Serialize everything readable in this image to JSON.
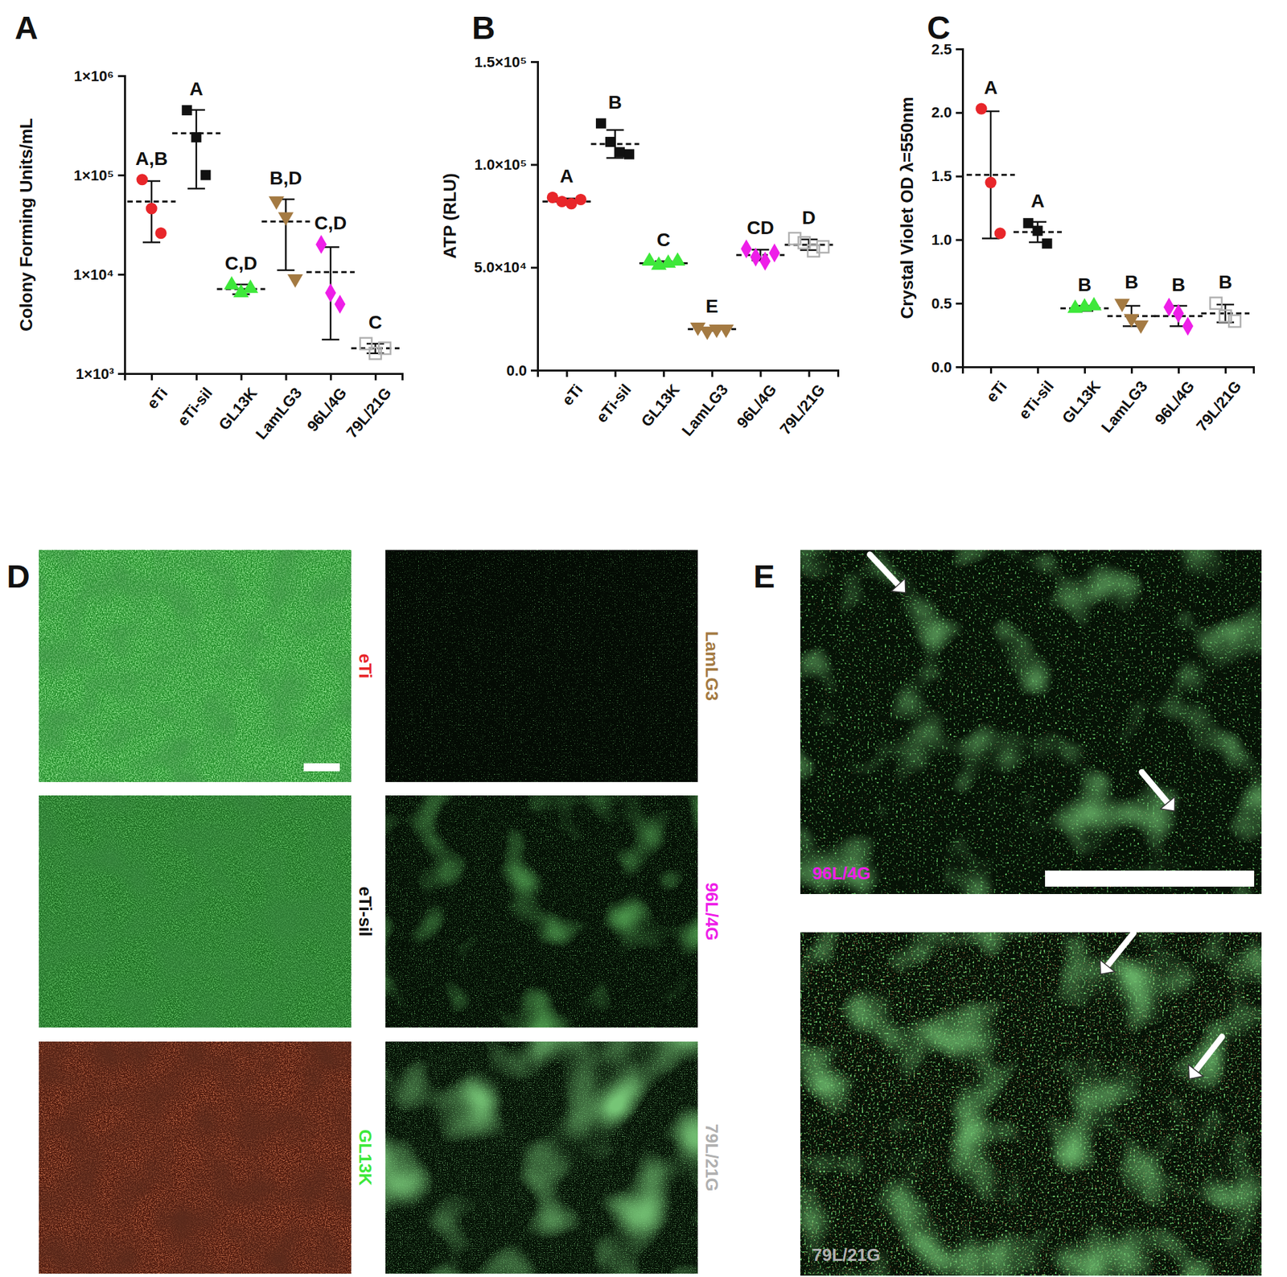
{
  "chart_data": [
    {
      "type": "scatter",
      "panel_label": "A",
      "y_label": "Colony Forming Units/mL",
      "log": "y",
      "ylim": [
        1000,
        1000000
      ],
      "yticks": [
        {
          "value": 1000,
          "label": "1×10³"
        },
        {
          "value": 10000,
          "label": "1×10⁴"
        },
        {
          "value": 100000,
          "label": "1×10⁵"
        },
        {
          "value": 1000000,
          "label": "1×10⁶"
        }
      ],
      "series": [
        {
          "name": "eTi",
          "color": "#e8262a",
          "marker": "circle",
          "values": [
            90000,
            46000,
            26000
          ],
          "mean": 54000,
          "sd": 33000,
          "letter": "A,B"
        },
        {
          "name": "eTi-sil",
          "color": "#111111",
          "marker": "square",
          "values": [
            450000,
            240000,
            100000
          ],
          "mean": 263000,
          "sd": 190000,
          "letter": "A"
        },
        {
          "name": "GL13K",
          "color": "#3ee83a",
          "marker": "triangle-up",
          "values": [
            7800,
            6500,
            7200
          ],
          "mean": 7100,
          "sd": 800,
          "letter": "C,D"
        },
        {
          "name": "LamLG3",
          "color": "#a47a42",
          "marker": "triangle-down",
          "values": [
            55000,
            38000,
            9000
          ],
          "mean": 34000,
          "sd": 23000,
          "letter": "B,D"
        },
        {
          "name": "96L/4G",
          "color": "#ee1ee8",
          "marker": "diamond",
          "values": [
            20000,
            6500,
            5000
          ],
          "mean": 10500,
          "sd": 8300,
          "letter": "C,D"
        },
        {
          "name": "79L/21G",
          "color": "#b0b0b0",
          "marker": "square-open",
          "values": [
            2000,
            1600,
            1800
          ],
          "mean": 1800,
          "sd": 200,
          "letter": "C"
        }
      ]
    },
    {
      "type": "scatter",
      "panel_label": "B",
      "y_label": "ATP (RLU)",
      "ylim": [
        0,
        150000
      ],
      "yticks": [
        {
          "value": 0,
          "label": "0.0"
        },
        {
          "value": 50000,
          "label": "5.0×10⁴"
        },
        {
          "value": 100000,
          "label": "1.0×10⁵"
        },
        {
          "value": 150000,
          "label": "1.5×10⁵"
        }
      ],
      "series": [
        {
          "name": "eTi",
          "color": "#e8262a",
          "marker": "circle",
          "values": [
            84000,
            82000,
            81000,
            83000
          ],
          "mean": 82000,
          "sd": 1500,
          "letter": "A"
        },
        {
          "name": "eTi-sil",
          "color": "#111111",
          "marker": "square",
          "values": [
            120000,
            111000,
            106000,
            105000
          ],
          "mean": 110000,
          "sd": 6800,
          "letter": "B"
        },
        {
          "name": "GL13K",
          "color": "#3ee83a",
          "marker": "triangle-up",
          "values": [
            53000,
            51000,
            52000,
            53000
          ],
          "mean": 52000,
          "sd": 1000,
          "letter": "C"
        },
        {
          "name": "LamLG3",
          "color": "#a47a42",
          "marker": "triangle-down",
          "values": [
            21000,
            19000,
            20000,
            20000
          ],
          "mean": 20000,
          "sd": 800,
          "letter": "E"
        },
        {
          "name": "96L/4G",
          "color": "#ee1ee8",
          "marker": "diamond",
          "values": [
            59000,
            55000,
            53000,
            57000
          ],
          "mean": 56000,
          "sd": 2600,
          "letter": "CD"
        },
        {
          "name": "79L/21G",
          "color": "#b0b0b0",
          "marker": "square-open",
          "values": [
            64000,
            62000,
            58000,
            60000
          ],
          "mean": 61000,
          "sd": 2600,
          "letter": "D"
        }
      ]
    },
    {
      "type": "scatter",
      "panel_label": "C",
      "y_label": "Crystal Violet OD λ=550nm",
      "ylim": [
        0,
        2.5
      ],
      "yticks": [
        {
          "value": 0,
          "label": "0.0"
        },
        {
          "value": 0.5,
          "label": "0.5"
        },
        {
          "value": 1,
          "label": "1.0"
        },
        {
          "value": 1.5,
          "label": "1.5"
        },
        {
          "value": 2,
          "label": "2.0"
        },
        {
          "value": 2.5,
          "label": "2.5"
        }
      ],
      "series": [
        {
          "name": "eTi",
          "color": "#e8262a",
          "marker": "circle",
          "values": [
            2.03,
            1.45,
            1.05
          ],
          "mean": 1.51,
          "sd": 0.5,
          "letter": "A"
        },
        {
          "name": "eTi-sil",
          "color": "#111111",
          "marker": "square",
          "values": [
            1.13,
            1.07,
            0.97
          ],
          "mean": 1.06,
          "sd": 0.08,
          "letter": "A"
        },
        {
          "name": "GL13K",
          "color": "#3ee83a",
          "marker": "triangle-up",
          "values": [
            0.46,
            0.47,
            0.48
          ],
          "mean": 0.46,
          "sd": 0.02,
          "letter": "B"
        },
        {
          "name": "LamLG3",
          "color": "#a47a42",
          "marker": "triangle-down",
          "values": [
            0.5,
            0.38,
            0.33
          ],
          "mean": 0.4,
          "sd": 0.08,
          "letter": "B"
        },
        {
          "name": "96L/4G",
          "color": "#ee1ee8",
          "marker": "diamond",
          "values": [
            0.47,
            0.42,
            0.32
          ],
          "mean": 0.4,
          "sd": 0.08,
          "letter": "B"
        },
        {
          "name": "79L/21G",
          "color": "#b0b0b0",
          "marker": "square-open",
          "values": [
            0.5,
            0.4,
            0.36
          ],
          "mean": 0.42,
          "sd": 0.07,
          "letter": "B"
        }
      ]
    }
  ],
  "images": [
    {
      "panel_label": "D",
      "panels": [
        {
          "label": "eTi",
          "color": "#e8262a"
        },
        {
          "label": "eTi-sil",
          "color": "#111111"
        },
        {
          "label": "GL13K",
          "color": "#3ee83a"
        },
        {
          "label": "LamLG3",
          "color": "#a47a42"
        },
        {
          "label": "96L/4G",
          "color": "#ee1ee8"
        },
        {
          "label": "79L/21G",
          "color": "#b0b0b0"
        }
      ]
    },
    {
      "panel_label": "E",
      "panels": [
        {
          "label": "96L/4G",
          "color": "#ee1ee8"
        },
        {
          "label": "79L/21G",
          "color": "#b0b0b0"
        }
      ]
    }
  ]
}
